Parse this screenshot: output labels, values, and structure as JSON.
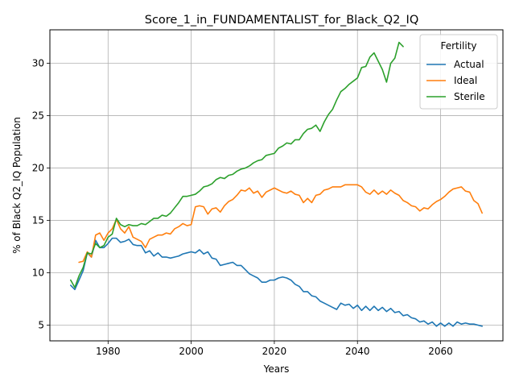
{
  "chart_data": {
    "type": "line",
    "title": "Score_1_in_FUNDAMENTALIST_for_Black_Q2_IQ",
    "xlabel": "Years",
    "ylabel": "% of Black Q2_IQ Population",
    "xlim": [
      1966,
      2075
    ],
    "ylim": [
      3.5,
      33.2
    ],
    "xticks": [
      1980,
      2000,
      2020,
      2040,
      2060
    ],
    "yticks": [
      5,
      10,
      15,
      20,
      25,
      30
    ],
    "grid": true,
    "legend": {
      "title": "Fertility",
      "placement": "top-right"
    },
    "series": [
      {
        "name": "Actual",
        "color": "#1f77b4",
        "x": [
          1971,
          1972,
          1973,
          1974,
          1975,
          1976,
          1977,
          1978,
          1979,
          1980,
          1981,
          1982,
          1983,
          1984,
          1985,
          1986,
          1987,
          1988,
          1989,
          1990,
          1991,
          1992,
          1993,
          1994,
          1995,
          1996,
          1997,
          1998,
          1999,
          2000,
          2001,
          2002,
          2003,
          2004,
          2005,
          2006,
          2007,
          2008,
          2009,
          2010,
          2011,
          2012,
          2013,
          2014,
          2015,
          2016,
          2017,
          2018,
          2019,
          2020,
          2021,
          2022,
          2023,
          2024,
          2025,
          2026,
          2027,
          2028,
          2029,
          2030,
          2031,
          2032,
          2033,
          2034,
          2035,
          2036,
          2037,
          2038,
          2039,
          2040,
          2041,
          2042,
          2043,
          2044,
          2045,
          2046,
          2047,
          2048,
          2049,
          2050,
          2051,
          2052,
          2053,
          2054,
          2055,
          2056,
          2057,
          2058,
          2059,
          2060,
          2061,
          2062,
          2063,
          2064,
          2065,
          2066,
          2067,
          2068,
          2069,
          2070
        ],
        "y": [
          8.8,
          8.4,
          9.3,
          10.2,
          11.9,
          11.5,
          13.1,
          12.4,
          12.4,
          12.8,
          13.3,
          13.3,
          12.9,
          13.0,
          13.2,
          12.7,
          12.6,
          12.6,
          11.9,
          12.1,
          11.6,
          11.9,
          11.5,
          11.5,
          11.4,
          11.5,
          11.6,
          11.8,
          11.9,
          12.0,
          11.9,
          12.2,
          11.8,
          12.0,
          11.4,
          11.3,
          10.7,
          10.8,
          10.9,
          11.0,
          10.7,
          10.7,
          10.3,
          9.9,
          9.7,
          9.5,
          9.1,
          9.1,
          9.3,
          9.3,
          9.5,
          9.6,
          9.5,
          9.3,
          8.9,
          8.7,
          8.2,
          8.2,
          7.8,
          7.7,
          7.3,
          7.1,
          6.9,
          6.7,
          6.5,
          7.1,
          6.9,
          7.0,
          6.6,
          6.9,
          6.4,
          6.8,
          6.4,
          6.8,
          6.4,
          6.7,
          6.3,
          6.6,
          6.2,
          6.3,
          5.9,
          6.0,
          5.7,
          5.6,
          5.3,
          5.4,
          5.1,
          5.3,
          4.9,
          5.2,
          4.9,
          5.2,
          4.9,
          5.3,
          5.1,
          5.2,
          5.1,
          5.1,
          5.0,
          4.9
        ]
      },
      {
        "name": "Ideal",
        "color": "#ff7f0e",
        "x": [
          1973,
          1974,
          1975,
          1976,
          1977,
          1978,
          1979,
          1980,
          1981,
          1982,
          1983,
          1984,
          1985,
          1986,
          1987,
          1988,
          1989,
          1990,
          1991,
          1992,
          1993,
          1994,
          1995,
          1996,
          1997,
          1998,
          1999,
          2000,
          2001,
          2002,
          2003,
          2004,
          2005,
          2006,
          2007,
          2008,
          2009,
          2010,
          2011,
          2012,
          2013,
          2014,
          2015,
          2016,
          2017,
          2018,
          2019,
          2020,
          2021,
          2022,
          2023,
          2024,
          2025,
          2026,
          2027,
          2028,
          2029,
          2030,
          2031,
          2032,
          2033,
          2034,
          2035,
          2036,
          2037,
          2038,
          2039,
          2040,
          2041,
          2042,
          2043,
          2044,
          2045,
          2046,
          2047,
          2048,
          2049,
          2050,
          2051,
          2052,
          2053,
          2054,
          2055,
          2056,
          2057,
          2058,
          2059,
          2060,
          2061,
          2062,
          2063,
          2064,
          2065,
          2066,
          2067,
          2068,
          2069,
          2070
        ],
        "y": [
          11.0,
          11.1,
          12.0,
          11.5,
          13.6,
          13.8,
          13.1,
          13.8,
          14.2,
          15.1,
          14.2,
          13.8,
          14.4,
          13.4,
          13.2,
          13.0,
          12.4,
          13.2,
          13.4,
          13.6,
          13.6,
          13.8,
          13.7,
          14.2,
          14.4,
          14.7,
          14.5,
          14.6,
          16.3,
          16.4,
          16.3,
          15.6,
          16.1,
          16.2,
          15.8,
          16.4,
          16.8,
          17.0,
          17.4,
          17.9,
          17.8,
          18.1,
          17.6,
          17.8,
          17.2,
          17.7,
          17.9,
          18.1,
          17.9,
          17.7,
          17.6,
          17.8,
          17.5,
          17.4,
          16.7,
          17.1,
          16.7,
          17.4,
          17.5,
          17.9,
          18.0,
          18.2,
          18.2,
          18.2,
          18.4,
          18.4,
          18.4,
          18.4,
          18.2,
          17.7,
          17.5,
          17.9,
          17.5,
          17.8,
          17.5,
          17.9,
          17.6,
          17.4,
          16.9,
          16.7,
          16.4,
          16.3,
          15.9,
          16.2,
          16.1,
          16.5,
          16.8,
          17.0,
          17.3,
          17.7,
          18.0,
          18.1,
          18.2,
          17.8,
          17.7,
          16.9,
          16.6,
          15.7
        ]
      },
      {
        "name": "Sterile",
        "color": "#2ca02c",
        "x": [
          1971,
          1972,
          1973,
          1974,
          1975,
          1976,
          1977,
          1978,
          1979,
          1980,
          1981,
          1982,
          1983,
          1984,
          1985,
          1986,
          1987,
          1988,
          1989,
          1990,
          1991,
          1992,
          1993,
          1994,
          1995,
          1996,
          1997,
          1998,
          1999,
          2000,
          2001,
          2002,
          2003,
          2004,
          2005,
          2006,
          2007,
          2008,
          2009,
          2010,
          2011,
          2012,
          2013,
          2014,
          2015,
          2016,
          2017,
          2018,
          2019,
          2020,
          2021,
          2022,
          2023,
          2024,
          2025,
          2026,
          2027,
          2028,
          2029,
          2030,
          2031,
          2032,
          2033,
          2034,
          2035,
          2036,
          2037,
          2038,
          2039,
          2040,
          2041,
          2042,
          2043,
          2044,
          2045,
          2046,
          2047,
          2048,
          2049,
          2050,
          2051
        ],
        "y": [
          9.3,
          8.6,
          9.7,
          10.5,
          11.9,
          11.8,
          12.8,
          12.4,
          12.6,
          13.4,
          13.7,
          15.2,
          14.6,
          14.4,
          14.6,
          14.5,
          14.5,
          14.7,
          14.6,
          14.9,
          15.2,
          15.2,
          15.5,
          15.4,
          15.7,
          16.2,
          16.7,
          17.3,
          17.3,
          17.4,
          17.5,
          17.8,
          18.2,
          18.3,
          18.5,
          18.9,
          19.1,
          19.0,
          19.3,
          19.4,
          19.7,
          19.9,
          20.0,
          20.2,
          20.5,
          20.7,
          20.8,
          21.2,
          21.3,
          21.4,
          21.9,
          22.1,
          22.4,
          22.3,
          22.7,
          22.7,
          23.3,
          23.7,
          23.8,
          24.1,
          23.5,
          24.4,
          25.1,
          25.6,
          26.5,
          27.3,
          27.6,
          28.0,
          28.3,
          28.6,
          29.6,
          29.7,
          30.6,
          31.0,
          30.2,
          29.4,
          28.2,
          30.0,
          30.5,
          32.0,
          31.6
        ]
      }
    ]
  }
}
